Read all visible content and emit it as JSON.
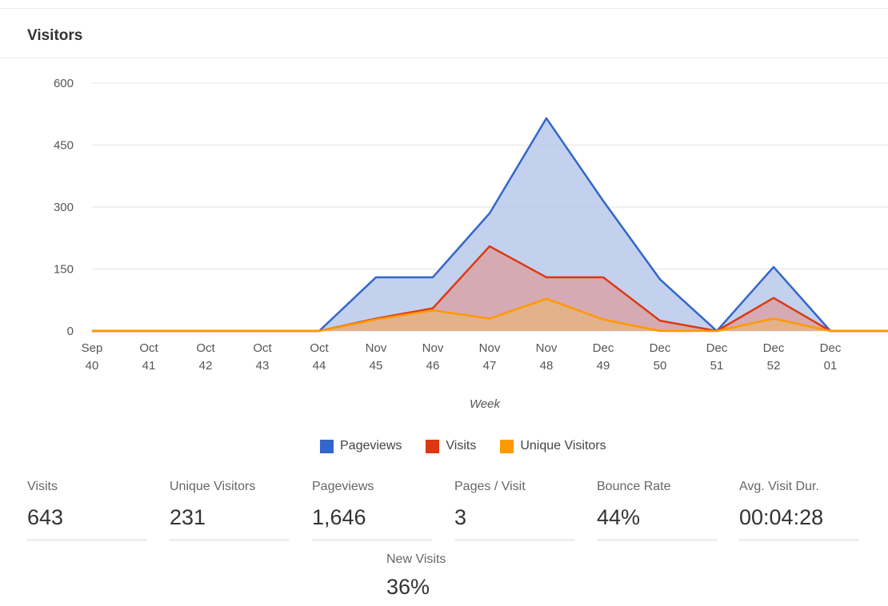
{
  "panel": {
    "title": "Visitors"
  },
  "chart_data": {
    "type": "area",
    "categories": [
      [
        "Sep",
        "40"
      ],
      [
        "Oct",
        "41"
      ],
      [
        "Oct",
        "42"
      ],
      [
        "Oct",
        "43"
      ],
      [
        "Oct",
        "44"
      ],
      [
        "Nov",
        "45"
      ],
      [
        "Nov",
        "46"
      ],
      [
        "Nov",
        "47"
      ],
      [
        "Nov",
        "48"
      ],
      [
        "Dec",
        "49"
      ],
      [
        "Dec",
        "50"
      ],
      [
        "Dec",
        "51"
      ],
      [
        "Dec",
        "52"
      ],
      [
        "Dec",
        "01"
      ]
    ],
    "series": [
      {
        "name": "Pageviews",
        "color": "#3366cc",
        "fill": "#b8c9ec",
        "values": [
          0,
          0,
          0,
          0,
          0,
          130,
          130,
          285,
          515,
          315,
          125,
          0,
          155,
          0
        ]
      },
      {
        "name": "Visits",
        "color": "#dc3912",
        "fill": "#d9a3a7",
        "values": [
          0,
          0,
          0,
          0,
          0,
          30,
          55,
          205,
          130,
          130,
          25,
          0,
          80,
          0
        ]
      },
      {
        "name": "Unique Visitors",
        "color": "#ff9900",
        "fill": "#e5b383",
        "values": [
          0,
          0,
          0,
          0,
          0,
          28,
          50,
          30,
          78,
          28,
          0,
          0,
          30,
          0
        ]
      }
    ],
    "xlabel": "Week",
    "ylabel": "",
    "ylim": [
      0,
      600
    ],
    "yticks": [
      0,
      150,
      300,
      450,
      600
    ],
    "grid": true,
    "legend": "bottom"
  },
  "stats": [
    {
      "label": "Visits",
      "value": "643"
    },
    {
      "label": "Unique Visitors",
      "value": "231"
    },
    {
      "label": "Pageviews",
      "value": "1,646"
    },
    {
      "label": "Pages / Visit",
      "value": "3"
    },
    {
      "label": "Bounce Rate",
      "value": "44%"
    },
    {
      "label": "Avg. Visit Dur.",
      "value": "00:04:28"
    }
  ],
  "new_visits": {
    "label": "New Visits",
    "value": "36%"
  }
}
